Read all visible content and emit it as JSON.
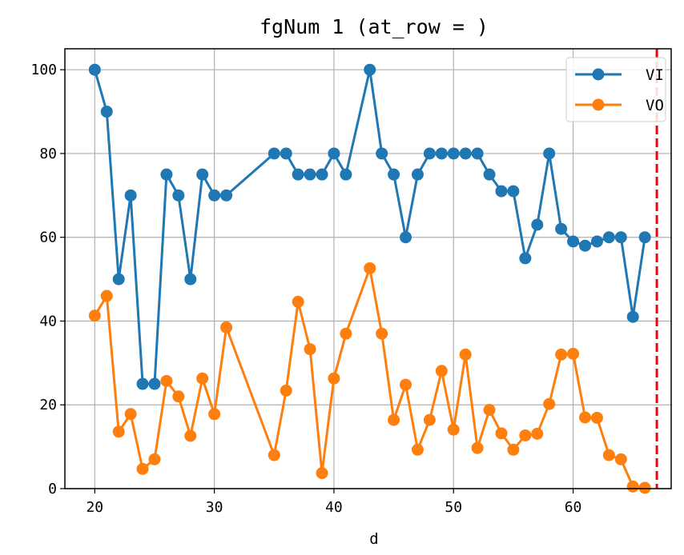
{
  "chart_data": {
    "type": "line",
    "title": "fgNum 1 (at_row = )",
    "xlabel": "d",
    "ylabel": "",
    "xlim": [
      17.5,
      68.2
    ],
    "ylim": [
      0,
      105
    ],
    "xticks": [
      20,
      30,
      40,
      50,
      60
    ],
    "yticks": [
      0,
      20,
      40,
      60,
      80,
      100
    ],
    "grid": true,
    "legend_position": "top-right",
    "vline": {
      "x": 67,
      "color": "#ff0000",
      "style": "dashed"
    },
    "series": [
      {
        "name": "VI",
        "color": "#1f77b4",
        "x": [
          20,
          21,
          22,
          23,
          24,
          25,
          26,
          27,
          28,
          29,
          30,
          31,
          35,
          36,
          37,
          38,
          39,
          40,
          41,
          43,
          44,
          45,
          46,
          47,
          48,
          49,
          50,
          51,
          52,
          53,
          54,
          55,
          56,
          57,
          58,
          59,
          60,
          61,
          62,
          63,
          64,
          65,
          66
        ],
        "y": [
          100,
          90,
          50,
          70,
          25,
          25,
          75,
          70,
          50,
          75,
          70,
          70,
          80,
          80,
          75,
          75,
          75,
          80,
          75,
          100,
          80,
          75,
          60,
          75,
          80,
          80,
          80,
          80,
          80,
          75,
          71,
          71,
          55,
          63,
          80,
          62,
          59,
          58,
          59,
          60,
          60,
          41,
          60
        ]
      },
      {
        "name": "VO",
        "color": "#ff7f0e",
        "x": [
          20,
          21,
          22,
          23,
          24,
          25,
          26,
          27,
          28,
          29,
          30,
          31,
          35,
          36,
          37,
          38,
          39,
          40,
          41,
          43,
          44,
          45,
          46,
          47,
          48,
          49,
          50,
          51,
          52,
          53,
          54,
          55,
          56,
          57,
          58,
          59,
          60,
          61,
          62,
          63,
          64,
          65,
          66
        ],
        "y": [
          41.3,
          46,
          13.6,
          17.8,
          4.7,
          7,
          25.7,
          22,
          12.6,
          26.3,
          17.8,
          38.5,
          8,
          23.4,
          44.6,
          33.3,
          3.7,
          26.3,
          37,
          52.6,
          37,
          16.4,
          24.8,
          9.3,
          16.4,
          28.1,
          14.1,
          32,
          9.7,
          18.8,
          13.2,
          9.3,
          12.7,
          13.1,
          20.2,
          32,
          32.2,
          17,
          16.9,
          8,
          7,
          0.5,
          0.2
        ]
      }
    ]
  }
}
